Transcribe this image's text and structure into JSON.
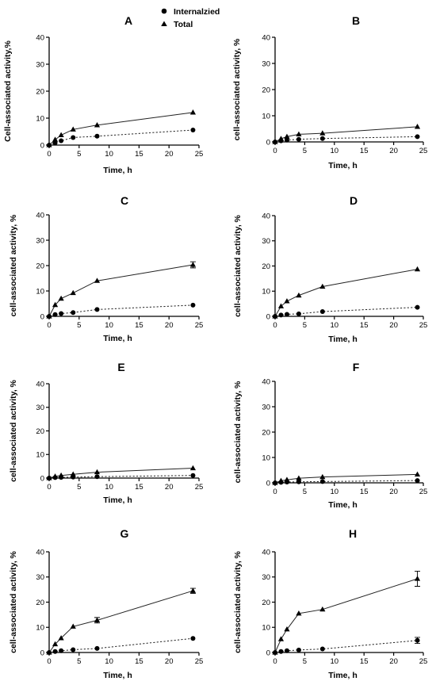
{
  "legend": {
    "internalized": "Internalzied",
    "total": "Total"
  },
  "chart_data": [
    {
      "type": "line",
      "title": "A",
      "xlabel": "Time, h",
      "ylabel": "Cell-associated activity,%",
      "xlim": [
        0,
        25
      ],
      "ylim": [
        0,
        40
      ],
      "xticks": [
        0,
        5,
        10,
        15,
        20,
        25
      ],
      "yticks": [
        0,
        10,
        20,
        30,
        40
      ],
      "x": [
        0,
        1,
        2,
        4,
        8,
        24
      ],
      "series": [
        {
          "name": "Internalzied",
          "values": [
            0,
            0.8,
            1.6,
            2.8,
            3.3,
            5.6
          ],
          "errors": [
            0,
            0,
            0,
            0,
            0,
            0
          ]
        },
        {
          "name": "Total",
          "values": [
            0,
            2.0,
            3.7,
            5.8,
            7.4,
            12.1
          ],
          "errors": [
            0,
            0,
            0,
            0,
            0,
            0
          ]
        }
      ]
    },
    {
      "type": "line",
      "title": "B",
      "xlabel": "Time, h",
      "ylabel": "cell-associated activity, %",
      "xlim": [
        0,
        25
      ],
      "ylim": [
        0,
        40
      ],
      "xticks": [
        0,
        5,
        10,
        15,
        20,
        25
      ],
      "yticks": [
        0,
        10,
        20,
        30,
        40
      ],
      "x": [
        0,
        1,
        2,
        4,
        8,
        24
      ],
      "series": [
        {
          "name": "Internalzied",
          "values": [
            0,
            0.4,
            0.7,
            1.0,
            1.3,
            2.0
          ],
          "errors": [
            0,
            0,
            0,
            0,
            0,
            0
          ]
        },
        {
          "name": "Total",
          "values": [
            0,
            1.2,
            2.0,
            2.9,
            3.3,
            5.8
          ],
          "errors": [
            0,
            0,
            0,
            0,
            0,
            0
          ]
        }
      ]
    },
    {
      "type": "line",
      "title": "C",
      "xlabel": "Time, h",
      "ylabel": "cell-associated activity, %",
      "xlim": [
        0,
        25
      ],
      "ylim": [
        0,
        40
      ],
      "xticks": [
        0,
        5,
        10,
        15,
        20,
        25
      ],
      "yticks": [
        0,
        10,
        20,
        30,
        40
      ],
      "x": [
        0,
        1,
        2,
        4,
        8,
        24
      ],
      "series": [
        {
          "name": "Internalzied",
          "values": [
            0,
            0.7,
            1.1,
            1.5,
            2.7,
            4.4
          ],
          "errors": [
            0,
            0,
            0,
            0,
            0,
            0
          ]
        },
        {
          "name": "Total",
          "values": [
            0,
            4.5,
            7.0,
            9.2,
            14.0,
            20.3
          ],
          "errors": [
            0,
            0,
            0,
            0,
            0,
            1.2
          ]
        }
      ]
    },
    {
      "type": "line",
      "title": "D",
      "xlabel": "Time, h",
      "ylabel": "cell-associated activity, %",
      "xlim": [
        0,
        25
      ],
      "ylim": [
        0,
        40
      ],
      "xticks": [
        0,
        5,
        10,
        15,
        20,
        25
      ],
      "yticks": [
        0,
        10,
        20,
        30,
        40
      ],
      "x": [
        0,
        1,
        2,
        4,
        8,
        24
      ],
      "series": [
        {
          "name": "Internalzied",
          "values": [
            0,
            0.5,
            0.8,
            1.0,
            1.9,
            3.6
          ],
          "errors": [
            0,
            0,
            0,
            0,
            0,
            0
          ]
        },
        {
          "name": "Total",
          "values": [
            0,
            4.0,
            6.0,
            8.3,
            11.8,
            18.7
          ],
          "errors": [
            0,
            0,
            0,
            0,
            0,
            0
          ]
        }
      ]
    },
    {
      "type": "line",
      "title": "E",
      "xlabel": "Time, h",
      "ylabel": "cell-associated activity, %",
      "xlim": [
        0,
        25
      ],
      "ylim": [
        0,
        40
      ],
      "xticks": [
        0,
        5,
        10,
        15,
        20,
        25
      ],
      "yticks": [
        0,
        10,
        20,
        30,
        40
      ],
      "x": [
        0,
        1,
        2,
        4,
        8,
        24
      ],
      "series": [
        {
          "name": "Internalzied",
          "values": [
            0,
            0.2,
            0.3,
            0.4,
            0.6,
            1.1
          ],
          "errors": [
            0,
            0,
            0,
            0,
            0,
            0
          ]
        },
        {
          "name": "Total",
          "values": [
            0,
            0.7,
            1.1,
            1.6,
            2.5,
            4.2
          ],
          "errors": [
            0,
            0,
            0,
            0,
            0,
            0
          ]
        }
      ]
    },
    {
      "type": "line",
      "title": "F",
      "xlabel": "Time, h",
      "ylabel": "cell-associated activity, %",
      "xlim": [
        0,
        25
      ],
      "ylim": [
        0,
        40
      ],
      "xticks": [
        0,
        5,
        10,
        15,
        20,
        25
      ],
      "yticks": [
        0,
        10,
        20,
        30,
        40
      ],
      "x": [
        0,
        1,
        2,
        4,
        8,
        24
      ],
      "series": [
        {
          "name": "Internalzied",
          "values": [
            0,
            0.2,
            0.3,
            0.4,
            0.5,
            0.9
          ],
          "errors": [
            0,
            0,
            0,
            0,
            0,
            0
          ]
        },
        {
          "name": "Total",
          "values": [
            0,
            0.8,
            1.2,
            1.8,
            2.3,
            3.3
          ],
          "errors": [
            0,
            0,
            0,
            0,
            0,
            0
          ]
        }
      ]
    },
    {
      "type": "line",
      "title": "G",
      "xlabel": "Time, h",
      "ylabel": "cell-associated activity, %",
      "xlim": [
        0,
        25
      ],
      "ylim": [
        0,
        40
      ],
      "xticks": [
        0,
        5,
        10,
        15,
        20,
        25
      ],
      "yticks": [
        0,
        10,
        20,
        30,
        40
      ],
      "x": [
        0,
        1,
        2,
        4,
        8,
        24
      ],
      "series": [
        {
          "name": "Internalzied",
          "values": [
            0,
            0.4,
            0.7,
            1.1,
            1.6,
            5.6
          ],
          "errors": [
            0,
            0,
            0,
            0,
            0,
            0
          ]
        },
        {
          "name": "Total",
          "values": [
            0,
            3.3,
            5.7,
            10.3,
            12.8,
            24.5
          ],
          "errors": [
            0,
            0,
            0,
            0,
            1.1,
            1.0
          ]
        }
      ]
    },
    {
      "type": "line",
      "title": "H",
      "xlabel": "Time, h",
      "ylabel": "cell-associated activity, %",
      "xlim": [
        0,
        25
      ],
      "ylim": [
        0,
        40
      ],
      "xticks": [
        0,
        5,
        10,
        15,
        20,
        25
      ],
      "yticks": [
        0,
        10,
        20,
        30,
        40
      ],
      "x": [
        0,
        1,
        2,
        4,
        8,
        24
      ],
      "series": [
        {
          "name": "Internalzied",
          "values": [
            0,
            0.4,
            0.7,
            1.0,
            1.4,
            4.8
          ],
          "errors": [
            0,
            0,
            0,
            0,
            0,
            1.2
          ]
        },
        {
          "name": "Total",
          "values": [
            0,
            5.3,
            9.2,
            15.5,
            17.1,
            29.3
          ],
          "errors": [
            0,
            0,
            0,
            0,
            0,
            3.0
          ]
        }
      ]
    }
  ]
}
